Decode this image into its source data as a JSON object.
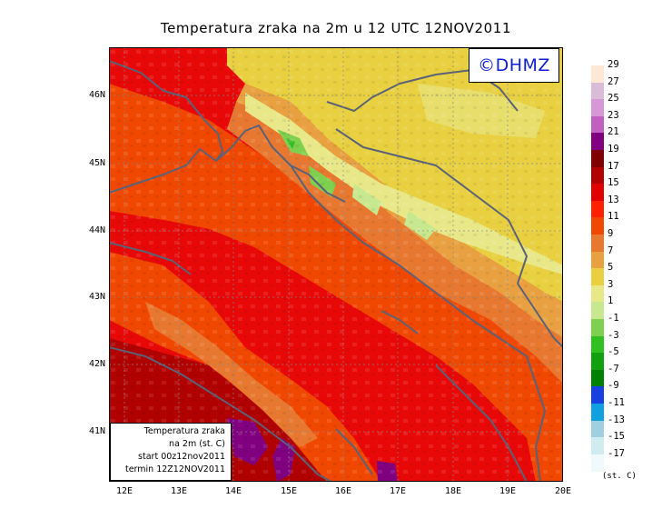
{
  "title": "Temperatura zraka na 2m u 12 UTC 12NOV2011",
  "copyright": "©DHMZ",
  "info_box": {
    "line1": "Temperatura zraka",
    "line2": "na 2m (st. C)",
    "line3": "start 00z12nov2011",
    "line4": "termin 12Z12NOV2011"
  },
  "latitude_labels": [
    "46N",
    "45N",
    "44N",
    "43N",
    "42N",
    "41N"
  ],
  "longitude_labels": [
    "12E",
    "13E",
    "14E",
    "15E",
    "16E",
    "17E",
    "18E",
    "19E",
    "20E"
  ],
  "legend": {
    "unit": "(st. C)",
    "labels": [
      "29",
      "27",
      "25",
      "23",
      "21",
      "19",
      "17",
      "15",
      "13",
      "11",
      "9",
      "7",
      "5",
      "3",
      "1",
      "-1",
      "-3",
      "-5",
      "-7",
      "-9",
      "-11",
      "-13",
      "-15",
      "-17"
    ],
    "colors": [
      "#fde8d8",
      "#d8bcd8",
      "#d898d8",
      "#c060c0",
      "#800080",
      "#800000",
      "#b00000",
      "#e00000",
      "#ff2000",
      "#f04800",
      "#e87830",
      "#e8a040",
      "#e8d040",
      "#e8e888",
      "#c8e890",
      "#80d050",
      "#30c020",
      "#10a010",
      "#008000",
      "#1840e0",
      "#10a0e0",
      "#a0d0e0",
      "#d0ecf0",
      "#f0fafc"
    ]
  }
}
